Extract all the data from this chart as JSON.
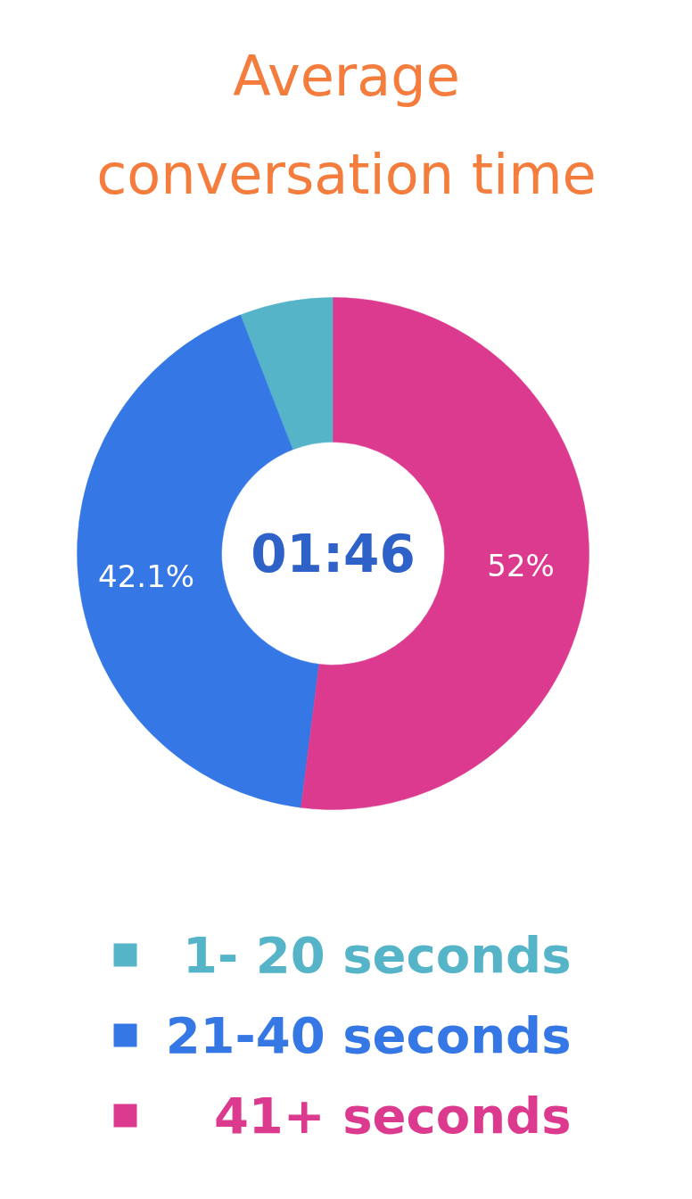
{
  "chart_data": {
    "type": "donut",
    "title": "Average conversation time",
    "categories": [
      "1- 20 seconds",
      "21-40 seconds",
      "41+ seconds"
    ],
    "values": [
      5.9,
      42.1,
      52
    ],
    "colors": [
      "#56b4c8",
      "#3578e5",
      "#dc3a8f"
    ],
    "value_labels": [
      null,
      "42.1%",
      "52%"
    ],
    "annotations": [
      "01:46"
    ],
    "legend": "bottom"
  }
}
